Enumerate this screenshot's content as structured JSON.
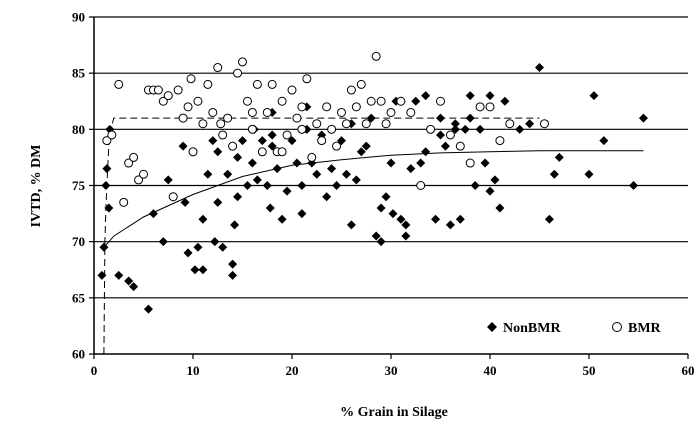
{
  "chart_data": {
    "type": "scatter",
    "title": "",
    "xlabel": "% Grain in Silage",
    "ylabel": "IVTD, % DM",
    "xlim": [
      0,
      60
    ],
    "ylim": [
      60,
      90
    ],
    "xticks": [
      "0",
      "10",
      "20",
      "30",
      "40",
      "50",
      "60"
    ],
    "yticks": [
      "60",
      "65",
      "70",
      "75",
      "80",
      "85",
      "90"
    ],
    "grid": true,
    "legend_position": "bottom-right",
    "series": [
      {
        "name": "NonBMR",
        "marker": "diamond",
        "color": "#000000",
        "x": [
          0.8,
          1.0,
          1.2,
          1.3,
          1.5,
          1.6,
          2.5,
          3.5,
          4.0,
          5.5,
          6.0,
          7.0,
          7.5,
          8.0,
          9.0,
          9.2,
          9.5,
          10.0,
          10.2,
          10.5,
          11.0,
          11.0,
          11.5,
          12.0,
          12.2,
          12.5,
          12.5,
          13.0,
          13.5,
          14.0,
          14.2,
          14.5,
          14.5,
          15.0,
          15.5,
          16.0,
          16.2,
          16.5,
          17.0,
          17.5,
          17.8,
          18.0,
          18.0,
          18.5,
          19.0,
          19.5,
          20.0,
          20.5,
          21.0,
          21.0,
          21.5,
          22.0,
          22.5,
          23.0,
          23.5,
          24.0,
          24.5,
          25.0,
          25.5,
          26.0,
          26.5,
          27.0,
          27.5,
          28.0,
          28.5,
          29.0,
          29.5,
          30.0,
          30.2,
          30.5,
          31.0,
          31.5,
          32.0,
          32.5,
          33.0,
          33.5,
          34.0,
          34.5,
          35.0,
          35.5,
          36.0,
          36.5,
          37.0,
          37.5,
          38.0,
          38.5,
          39.0,
          39.5,
          40.0,
          40.5,
          41.0,
          41.5,
          42.0,
          43.0,
          44.0,
          45.0,
          46.0,
          46.5,
          47.0,
          50.0,
          50.5,
          51.5,
          54.5,
          55.5,
          18.0,
          26.0,
          29.0,
          31.5,
          33.5,
          35.0,
          36.5,
          38.0,
          40.0,
          14.0,
          21.5
        ],
        "y": [
          67.0,
          69.5,
          75.0,
          76.5,
          73.0,
          80.0,
          67.0,
          66.5,
          66.0,
          64.0,
          72.5,
          70.0,
          75.5,
          74.0,
          78.5,
          73.5,
          69.0,
          78.0,
          67.5,
          69.5,
          72.0,
          67.5,
          76.0,
          79.0,
          70.0,
          73.5,
          78.0,
          69.5,
          76.0,
          68.0,
          71.5,
          74.0,
          77.5,
          79.0,
          75.0,
          77.0,
          80.0,
          75.5,
          79.0,
          75.0,
          73.0,
          78.5,
          81.5,
          76.5,
          72.0,
          74.5,
          79.0,
          77.0,
          72.5,
          75.0,
          80.0,
          77.0,
          76.0,
          79.5,
          74.0,
          76.5,
          75.0,
          79.0,
          76.0,
          80.5,
          75.5,
          78.0,
          78.5,
          81.0,
          70.5,
          73.0,
          74.0,
          77.0,
          72.5,
          82.5,
          72.0,
          70.5,
          76.5,
          82.5,
          77.0,
          83.0,
          80.0,
          72.0,
          79.5,
          78.5,
          71.5,
          80.5,
          72.0,
          80.0,
          81.0,
          75.0,
          80.0,
          77.0,
          74.5,
          75.5,
          73.0,
          82.5,
          80.5,
          80.0,
          80.5,
          85.5,
          72.0,
          76.0,
          77.5,
          76.0,
          83.0,
          79.0,
          75.0,
          81.0,
          79.5,
          71.5,
          70.0,
          71.5,
          78.0,
          81.0,
          80.0,
          83.0,
          83.0,
          67.0,
          82.0
        ]
      },
      {
        "name": "BMR",
        "marker": "circle",
        "color": "#ffffff",
        "x": [
          1.3,
          1.8,
          2.5,
          3.0,
          3.5,
          4.0,
          4.5,
          5.0,
          5.5,
          6.0,
          6.5,
          7.0,
          7.5,
          8.0,
          8.5,
          9.0,
          9.5,
          9.8,
          10.0,
          10.5,
          11.0,
          11.5,
          12.0,
          12.5,
          12.8,
          13.0,
          13.5,
          14.0,
          14.5,
          15.0,
          15.5,
          16.0,
          16.5,
          17.0,
          17.5,
          18.0,
          18.5,
          19.0,
          19.5,
          20.0,
          20.5,
          21.0,
          21.5,
          22.0,
          22.5,
          23.0,
          23.5,
          24.0,
          24.5,
          25.0,
          25.5,
          26.0,
          26.5,
          27.0,
          27.5,
          28.0,
          28.5,
          29.0,
          29.5,
          30.0,
          31.0,
          32.0,
          33.0,
          34.0,
          35.0,
          36.0,
          37.0,
          38.0,
          39.0,
          40.0,
          41.0,
          42.0,
          45.5,
          19.0,
          21.0,
          16.0
        ],
        "y": [
          79.0,
          79.5,
          84.0,
          73.5,
          77.0,
          77.5,
          75.5,
          76.0,
          83.5,
          83.5,
          83.5,
          82.5,
          83.0,
          74.0,
          83.5,
          81.0,
          82.0,
          84.5,
          78.0,
          82.5,
          80.5,
          84.0,
          81.5,
          85.5,
          80.5,
          79.5,
          81.0,
          78.5,
          85.0,
          86.0,
          82.5,
          81.5,
          84.0,
          78.0,
          81.5,
          84.0,
          78.0,
          82.5,
          79.5,
          83.5,
          81.0,
          82.0,
          84.5,
          77.5,
          80.5,
          79.0,
          82.0,
          80.0,
          78.5,
          81.5,
          80.5,
          83.5,
          82.0,
          84.0,
          80.5,
          82.5,
          86.5,
          82.5,
          80.5,
          81.5,
          82.5,
          81.5,
          75.0,
          80.0,
          82.5,
          79.5,
          78.5,
          77.0,
          82.0,
          82.0,
          79.0,
          80.5,
          80.5,
          78.0,
          80.0,
          80.0
        ]
      }
    ],
    "fit_lines": [
      {
        "series": "NonBMR",
        "style": "solid",
        "x": [
          1,
          2,
          5,
          10,
          15,
          20,
          25,
          30,
          35,
          40,
          45,
          50,
          55.5
        ],
        "y": [
          69.5,
          70.5,
          72.2,
          74.2,
          75.8,
          76.8,
          77.3,
          77.7,
          77.9,
          78.0,
          78.1,
          78.1,
          78.1
        ]
      },
      {
        "series": "BMR",
        "style": "dashed",
        "x": [
          1,
          1.05,
          1.1,
          1.2,
          1.35,
          1.5,
          1.7,
          2.0,
          10,
          20,
          30,
          40,
          45
        ],
        "y": [
          60,
          65,
          70,
          73,
          76,
          78.5,
          80,
          81,
          81,
          81,
          81,
          81,
          81
        ]
      }
    ]
  }
}
